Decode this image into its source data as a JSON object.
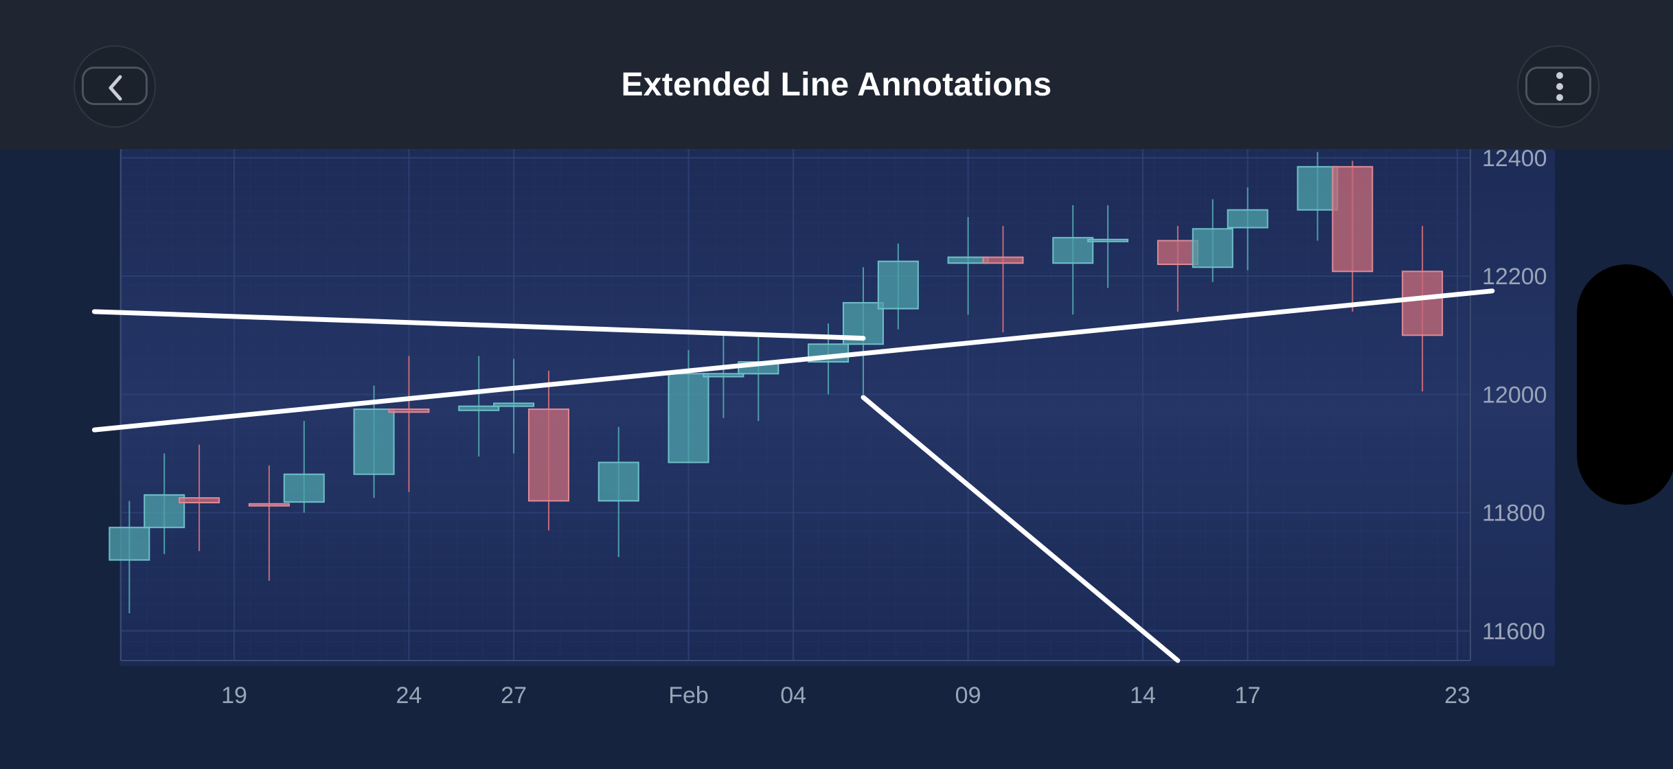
{
  "header": {
    "title": "Extended Line Annotations",
    "back_icon": "chevron-left-icon",
    "more_icon": "more-vertical-icon"
  },
  "colors": {
    "nav_bg": "#1f2631",
    "plot_bg": "#1f2f5c",
    "up": "#4d9ea8",
    "down": "#c46a78",
    "annotation": "#ffffff",
    "axis_text": "#9aa5b8"
  },
  "chart_data": {
    "type": "candlestick",
    "title": "Extended Line Annotations",
    "ylim": [
      11550,
      12415
    ],
    "y_ticks": [
      12400,
      12200,
      12000,
      11800,
      11600
    ],
    "x_ticks": [
      {
        "label": "19",
        "date": "2024-01-19"
      },
      {
        "label": "24",
        "date": "2024-01-24"
      },
      {
        "label": "27",
        "date": "2024-01-27"
      },
      {
        "label": "Feb",
        "date": "2024-02-01"
      },
      {
        "label": "04",
        "date": "2024-02-04"
      },
      {
        "label": "09",
        "date": "2024-02-09"
      },
      {
        "label": "14",
        "date": "2024-02-14"
      },
      {
        "label": "17",
        "date": "2024-02-17"
      },
      {
        "label": "23",
        "date": "2024-02-23"
      }
    ],
    "grid": true,
    "candles": [
      {
        "date": "2024-01-16",
        "open": 11720,
        "high": 11820,
        "low": 11630,
        "close": 11775
      },
      {
        "date": "2024-01-17",
        "open": 11775,
        "high": 11900,
        "low": 11730,
        "close": 11830
      },
      {
        "date": "2024-01-18",
        "open": 11825,
        "high": 11915,
        "low": 11735,
        "close": 11817
      },
      {
        "date": "2024-01-20",
        "open": 11815,
        "high": 11880,
        "low": 11685,
        "close": 11813
      },
      {
        "date": "2024-01-21",
        "open": 11818,
        "high": 11955,
        "low": 11800,
        "close": 11865
      },
      {
        "date": "2024-01-23",
        "open": 11865,
        "high": 12015,
        "low": 11825,
        "close": 11975
      },
      {
        "date": "2024-01-24",
        "open": 11975,
        "high": 12065,
        "low": 11835,
        "close": 11970
      },
      {
        "date": "2024-01-26",
        "open": 11973,
        "high": 12065,
        "low": 11895,
        "close": 11980
      },
      {
        "date": "2024-01-27",
        "open": 11980,
        "high": 12060,
        "low": 11900,
        "close": 11985
      },
      {
        "date": "2024-01-28",
        "open": 11975,
        "high": 12040,
        "low": 11770,
        "close": 11820
      },
      {
        "date": "2024-01-30",
        "open": 11820,
        "high": 11945,
        "low": 11725,
        "close": 11885
      },
      {
        "date": "2024-02-01",
        "open": 11885,
        "high": 12075,
        "low": 11885,
        "close": 12035
      },
      {
        "date": "2024-02-02",
        "open": 12030,
        "high": 12100,
        "low": 11960,
        "close": 12035
      },
      {
        "date": "2024-02-03",
        "open": 12035,
        "high": 12100,
        "low": 11955,
        "close": 12055
      },
      {
        "date": "2024-02-05",
        "open": 12055,
        "high": 12120,
        "low": 12000,
        "close": 12085
      },
      {
        "date": "2024-02-06",
        "open": 12085,
        "high": 12215,
        "low": 12000,
        "close": 12155
      },
      {
        "date": "2024-02-07",
        "open": 12145,
        "high": 12255,
        "low": 12110,
        "close": 12225
      },
      {
        "date": "2024-02-09",
        "open": 12222,
        "high": 12300,
        "low": 12135,
        "close": 12232
      },
      {
        "date": "2024-02-10",
        "open": 12232,
        "high": 12285,
        "low": 12105,
        "close": 12222
      },
      {
        "date": "2024-02-12",
        "open": 12222,
        "high": 12320,
        "low": 12135,
        "close": 12265
      },
      {
        "date": "2024-02-13",
        "open": 12262,
        "high": 12320,
        "low": 12180,
        "close": 12262
      },
      {
        "date": "2024-02-15",
        "open": 12260,
        "high": 12285,
        "low": 12140,
        "close": 12220
      },
      {
        "date": "2024-02-16",
        "open": 12215,
        "high": 12330,
        "low": 12190,
        "close": 12280
      },
      {
        "date": "2024-02-17",
        "open": 12282,
        "high": 12350,
        "low": 12210,
        "close": 12312
      },
      {
        "date": "2024-02-19",
        "open": 12312,
        "high": 12410,
        "low": 12260,
        "close": 12385
      },
      {
        "date": "2024-02-20",
        "open": 12385,
        "high": 12395,
        "low": 12140,
        "close": 12208
      },
      {
        "date": "2024-02-22",
        "open": 12208,
        "high": 12285,
        "low": 12005,
        "close": 12100
      }
    ],
    "annotations": [
      {
        "type": "line",
        "x1": "2024-01-15",
        "y1": 12140,
        "x2": "2024-02-06",
        "y2": 12095
      },
      {
        "type": "line",
        "x1": "2024-01-15",
        "y1": 11940,
        "x2": "2024-02-24",
        "y2": 12175
      },
      {
        "type": "line",
        "x1": "2024-02-06",
        "y1": 11995,
        "x2": "2024-02-15",
        "y2": 11550
      }
    ]
  }
}
